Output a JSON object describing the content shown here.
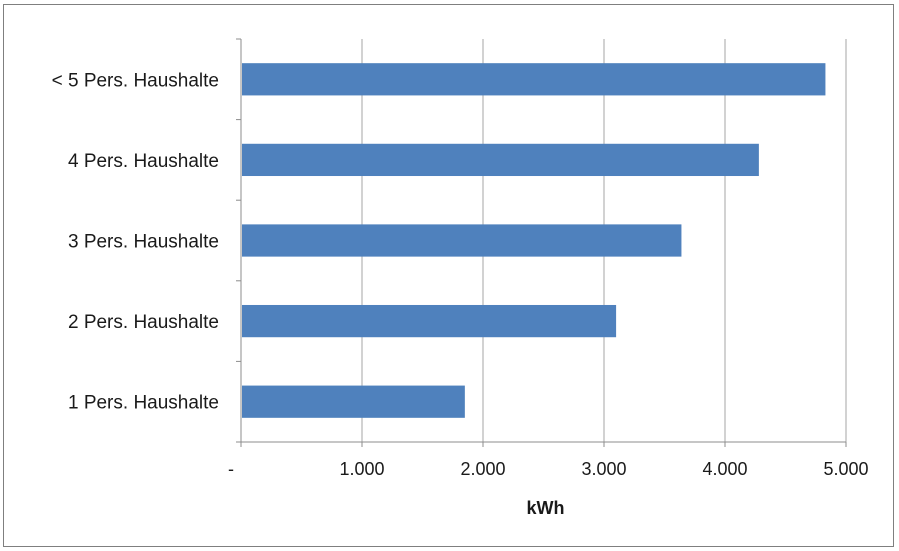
{
  "chart_data": {
    "type": "bar",
    "orientation": "horizontal",
    "categories": [
      "< 5 Pers. Haushalte",
      "4 Pers. Haushalte",
      "3 Pers. Haushalte",
      "2 Pers. Haushalte",
      "1 Pers. Haushalte"
    ],
    "values": [
      4830,
      4280,
      3640,
      3100,
      1850
    ],
    "xlabel": "kWh",
    "ylabel": "",
    "title": "",
    "xlim": [
      0,
      5000
    ],
    "x_ticks": [
      0,
      1000,
      2000,
      3000,
      4000,
      5000
    ],
    "x_tick_labels": [
      "-",
      "1.000",
      "2.000",
      "3.000",
      "4.000",
      "5.000"
    ],
    "grid": "vertical",
    "legend": "none",
    "bar_color": "#4f81bd",
    "grid_color": "#a6a6a6",
    "axis_color": "#8c8c8c"
  }
}
